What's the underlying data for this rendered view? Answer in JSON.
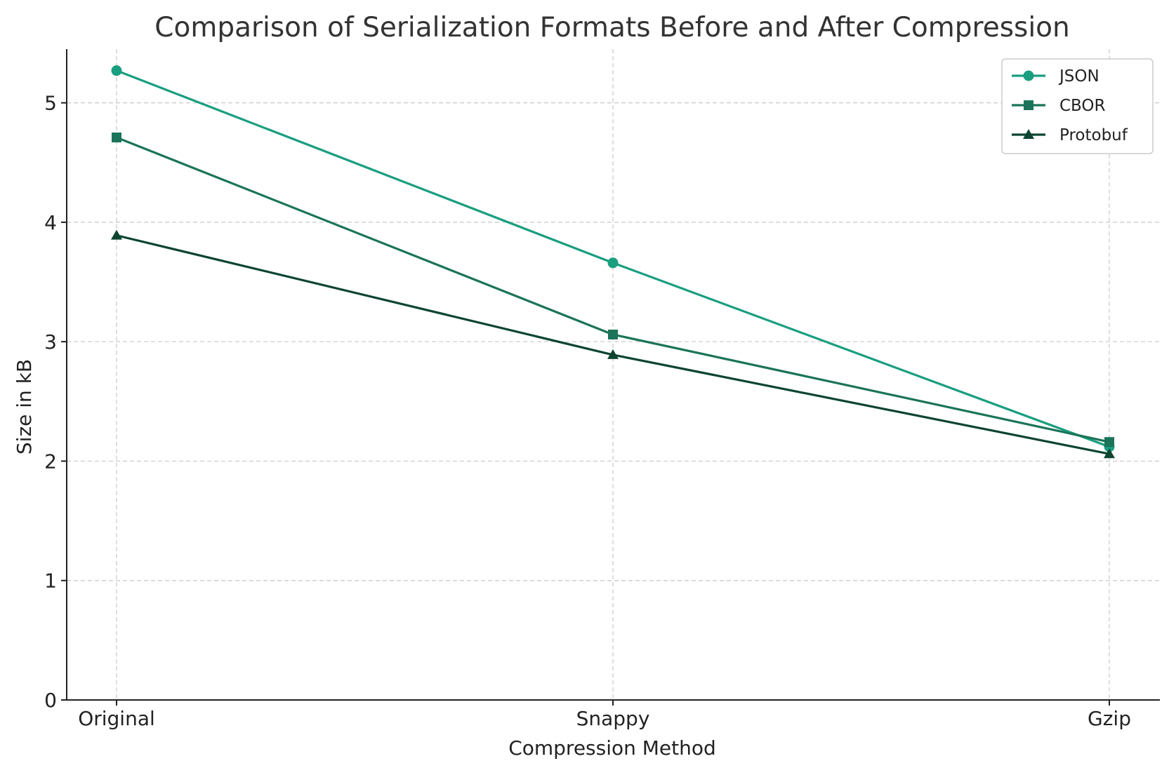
{
  "chart_data": {
    "type": "line",
    "title": "Comparison of Serialization Formats Before and After Compression",
    "xlabel": "Compression Method",
    "ylabel": "Size in kB",
    "categories": [
      "Original",
      "Snappy",
      "Gzip"
    ],
    "ylim": [
      0,
      5.45
    ],
    "yticks": [
      0,
      1,
      2,
      3,
      4,
      5
    ],
    "grid": true,
    "legend_position": "top-right",
    "series": [
      {
        "name": "JSON",
        "values": [
          5.27,
          3.66,
          2.12
        ],
        "color": "#1a9e80",
        "marker": "circle"
      },
      {
        "name": "CBOR",
        "values": [
          4.71,
          3.06,
          2.16
        ],
        "color": "#1b7459",
        "marker": "square"
      },
      {
        "name": "Protobuf",
        "values": [
          3.89,
          2.89,
          2.06
        ],
        "color": "#0d4530",
        "marker": "triangle"
      }
    ]
  }
}
